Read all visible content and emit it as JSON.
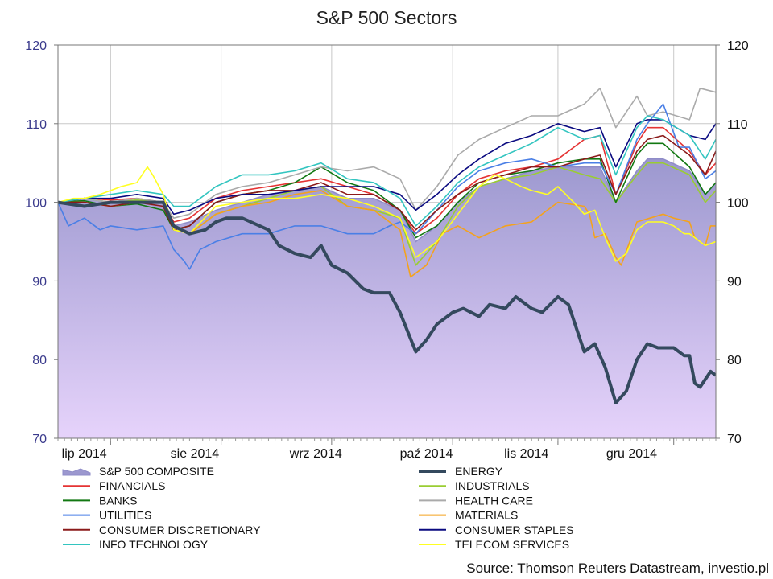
{
  "chart_data": {
    "type": "line",
    "title": "S&P 500 Sectors",
    "source": "Source: Thomson Reuters Datastream, investio.pl",
    "ylim": [
      70,
      120
    ],
    "yticks": [
      70,
      80,
      90,
      100,
      110,
      120
    ],
    "x_range": [
      0,
      125
    ],
    "x_month_starts": [
      10,
      31,
      52,
      75,
      95,
      117
    ],
    "xtick_labels": [
      "lip 2014",
      "sie 2014",
      "wrz 2014",
      "paź 2014",
      "lis 2014",
      "gru 2014"
    ],
    "xtick_label_positions": [
      5,
      26,
      49,
      70,
      89,
      109
    ],
    "grid": true,
    "legend_placement": "bottom",
    "series": [
      {
        "name": "S&P 500 COMPOSITE",
        "color": "#9999cc",
        "style": "area",
        "x": [
          0,
          5,
          10,
          15,
          20,
          22,
          25,
          30,
          35,
          40,
          45,
          50,
          55,
          60,
          65,
          68,
          72,
          76,
          80,
          85,
          90,
          95,
          100,
          103,
          106,
          110,
          112,
          115,
          120,
          123,
          125
        ],
        "y": [
          100,
          100.5,
          100,
          100.3,
          100,
          97,
          97.5,
          99,
          100,
          101,
          101.5,
          102,
          100.5,
          100.5,
          99,
          95,
          97,
          100,
          102,
          103,
          104,
          104.5,
          104.5,
          104.5,
          100,
          104,
          105.5,
          105.5,
          104,
          101,
          102.5
        ]
      },
      {
        "name": "ENERGY",
        "color": "#34495e",
        "width": 4,
        "x": [
          0,
          5,
          10,
          15,
          20,
          22,
          25,
          28,
          30,
          32,
          35,
          40,
          42,
          45,
          48,
          50,
          52,
          55,
          58,
          60,
          63,
          65,
          68,
          70,
          72,
          74,
          75,
          77,
          80,
          82,
          85,
          87,
          90,
          92,
          95,
          97,
          100,
          102,
          104,
          106,
          108,
          110,
          112,
          114,
          115,
          117,
          119,
          120,
          121,
          122,
          124,
          125
        ],
        "y": [
          100,
          99.5,
          100,
          100,
          100,
          97,
          96,
          96.5,
          97.5,
          98,
          98,
          96.5,
          94.5,
          93.5,
          93,
          94.5,
          92,
          91,
          89,
          88.5,
          88.5,
          86,
          81,
          82.5,
          84.5,
          85.5,
          86,
          86.5,
          85.5,
          87,
          86.5,
          88,
          86.5,
          86,
          88,
          87,
          81,
          82,
          79,
          74.5,
          76,
          80,
          82,
          81.5,
          81.5,
          81.5,
          80.5,
          80.5,
          77,
          76.5,
          78.5,
          78
        ]
      },
      {
        "name": "FINANCIALS",
        "color": "#e53333",
        "x": [
          0,
          5,
          10,
          15,
          20,
          22,
          25,
          30,
          35,
          40,
          45,
          50,
          55,
          60,
          65,
          68,
          72,
          76,
          80,
          85,
          90,
          95,
          100,
          103,
          106,
          110,
          112,
          115,
          120,
          123,
          125
        ],
        "y": [
          100,
          100.5,
          100.3,
          100.5,
          100,
          97.5,
          98,
          100.5,
          101.5,
          102,
          102.5,
          103,
          102,
          101,
          99,
          96,
          98,
          101,
          103,
          104,
          104.5,
          105.5,
          108,
          108.5,
          101,
          107.5,
          109.5,
          109.5,
          106.5,
          103.5,
          105
        ]
      },
      {
        "name": "INDUSTRIALS",
        "color": "#9acd32",
        "x": [
          0,
          5,
          10,
          15,
          20,
          22,
          25,
          30,
          35,
          40,
          45,
          50,
          55,
          60,
          65,
          68,
          72,
          76,
          80,
          85,
          90,
          95,
          100,
          103,
          106,
          110,
          112,
          115,
          120,
          123,
          125
        ],
        "y": [
          100,
          100.5,
          100,
          100.3,
          100,
          97,
          96,
          98.5,
          99.5,
          100.5,
          101.5,
          102,
          99.5,
          99,
          98,
          92,
          95,
          99.5,
          102,
          103,
          103.5,
          104.5,
          103.5,
          103,
          100,
          103.5,
          105,
          105,
          103.5,
          100,
          101.5
        ]
      },
      {
        "name": "BANKS",
        "color": "#127812",
        "x": [
          0,
          5,
          10,
          15,
          20,
          22,
          25,
          30,
          35,
          40,
          45,
          50,
          55,
          60,
          65,
          68,
          72,
          76,
          80,
          85,
          90,
          95,
          100,
          103,
          106,
          110,
          112,
          115,
          120,
          123,
          125
        ],
        "y": [
          100,
          100.2,
          99.5,
          99.8,
          99,
          96.5,
          97,
          100,
          101,
          101.5,
          102.5,
          104.5,
          102.5,
          101.5,
          99,
          95.5,
          97,
          100,
          102.5,
          103.5,
          104,
          105,
          105.5,
          105.5,
          100,
          106,
          107.5,
          107.5,
          104.5,
          101,
          102.5
        ]
      },
      {
        "name": "HEALTH CARE",
        "color": "#aaaaaa",
        "x": [
          0,
          5,
          10,
          15,
          20,
          22,
          25,
          30,
          35,
          40,
          45,
          50,
          55,
          60,
          65,
          68,
          72,
          76,
          80,
          85,
          90,
          95,
          100,
          103,
          106,
          110,
          112,
          115,
          120,
          122,
          125
        ],
        "y": [
          100,
          100.5,
          100,
          100.5,
          100,
          98,
          98.5,
          101,
          102,
          102.5,
          103.5,
          104.5,
          104,
          104.5,
          103,
          99,
          102,
          106,
          108,
          109.5,
          111,
          111,
          112.5,
          114.5,
          109.5,
          113.5,
          111,
          111.5,
          110.5,
          114.5,
          114
        ]
      },
      {
        "name": "UTILITIES",
        "color": "#4a7fe6",
        "x": [
          0,
          2,
          5,
          8,
          10,
          15,
          20,
          22,
          24,
          25,
          27,
          30,
          35,
          40,
          45,
          50,
          55,
          60,
          63,
          65,
          68,
          72,
          76,
          80,
          85,
          90,
          95,
          100,
          103,
          106,
          110,
          112,
          115,
          118,
          120,
          123,
          125
        ],
        "y": [
          100,
          97,
          98,
          96.5,
          97,
          96.5,
          97,
          94,
          92.5,
          91.5,
          94,
          95,
          96,
          96,
          97,
          97,
          96,
          96,
          97,
          97.5,
          96,
          99,
          102,
          104,
          105,
          105.5,
          104.5,
          105,
          105,
          101,
          108,
          110,
          112.5,
          107,
          107,
          103,
          104
        ]
      },
      {
        "name": "MATERIALS",
        "color": "#f4a21d",
        "x": [
          0,
          5,
          10,
          15,
          20,
          22,
          25,
          30,
          35,
          40,
          45,
          50,
          55,
          60,
          65,
          67,
          70,
          73,
          76,
          80,
          85,
          90,
          95,
          100,
          101,
          102,
          104,
          106,
          107,
          110,
          115,
          117,
          120,
          121,
          123,
          124,
          125
        ],
        "y": [
          100,
          100,
          99.5,
          100,
          100,
          97,
          96,
          98.5,
          99.5,
          100,
          101,
          101.5,
          99.5,
          99,
          96.5,
          90.5,
          92,
          96,
          97,
          95.5,
          97,
          97.5,
          100,
          99.5,
          98.5,
          95.5,
          96,
          93,
          92,
          97.5,
          98.5,
          98,
          97.5,
          95.5,
          94.5,
          97,
          97
        ]
      },
      {
        "name": "CONSUMER DISCRETIONARY",
        "color": "#8b1a1a",
        "x": [
          0,
          5,
          10,
          15,
          20,
          22,
          25,
          30,
          35,
          40,
          45,
          50,
          55,
          60,
          65,
          68,
          72,
          76,
          80,
          85,
          90,
          95,
          100,
          103,
          106,
          110,
          112,
          115,
          120,
          123,
          125
        ],
        "y": [
          100,
          100,
          99.5,
          100,
          99.5,
          96.5,
          97,
          100,
          101,
          101.5,
          101.5,
          102.5,
          101,
          101,
          99,
          96.5,
          99,
          101,
          102.5,
          103.5,
          104.5,
          104.5,
          105.5,
          106,
          101,
          106.5,
          108,
          108.5,
          106,
          103.5,
          106.5
        ]
      },
      {
        "name": "CONSUMER STAPLES",
        "color": "#0a0a80",
        "x": [
          0,
          5,
          10,
          15,
          20,
          22,
          25,
          30,
          35,
          40,
          45,
          50,
          55,
          60,
          65,
          68,
          72,
          76,
          80,
          85,
          90,
          95,
          100,
          103,
          106,
          110,
          112,
          115,
          120,
          123,
          125
        ],
        "y": [
          100,
          100.5,
          100.5,
          101,
          100.5,
          98.5,
          99,
          100.5,
          101,
          101,
          101.5,
          102,
          102,
          102,
          101,
          99,
          101,
          103.5,
          105.5,
          107.5,
          108.5,
          110,
          109,
          109.5,
          104.5,
          110,
          110.5,
          110.5,
          108.5,
          108,
          110
        ]
      },
      {
        "name": "INFO TECHNOLOGY",
        "color": "#33c5c0",
        "x": [
          0,
          5,
          10,
          15,
          20,
          22,
          25,
          30,
          35,
          40,
          45,
          50,
          55,
          60,
          65,
          68,
          72,
          76,
          80,
          85,
          90,
          95,
          100,
          103,
          106,
          110,
          112,
          115,
          120,
          123,
          125
        ],
        "y": [
          100,
          100.5,
          101,
          101.5,
          101,
          99.5,
          99.5,
          102,
          103.5,
          103.5,
          104,
          105,
          103,
          102.5,
          100.5,
          97,
          99.5,
          102.5,
          104.5,
          106,
          107.5,
          109.5,
          108,
          108.5,
          103.5,
          109.5,
          111,
          110.5,
          108.5,
          105.5,
          108
        ]
      },
      {
        "name": "TELECOM SERVICES",
        "color": "#ffff22",
        "x": [
          0,
          3,
          5,
          8,
          10,
          12,
          15,
          17,
          18,
          20,
          22,
          25,
          30,
          35,
          40,
          45,
          50,
          55,
          60,
          65,
          68,
          72,
          76,
          80,
          83,
          85,
          88,
          90,
          93,
          95,
          98,
          100,
          102,
          104,
          106,
          108,
          110,
          112,
          115,
          117,
          119,
          120,
          121,
          123,
          125
        ],
        "y": [
          100,
          100.5,
          100.5,
          101,
          101.5,
          102,
          102.5,
          104.5,
          103.5,
          101,
          96.5,
          96,
          99.5,
          100,
          100.5,
          100.5,
          101,
          100.5,
          99.5,
          98,
          93,
          95,
          98.5,
          102,
          103.5,
          103,
          102,
          101.5,
          101,
          102,
          100,
          98.5,
          99,
          95.5,
          92.5,
          93.5,
          96.5,
          97.5,
          97.5,
          97,
          96,
          96,
          95.5,
          94.5,
          95
        ]
      }
    ]
  }
}
